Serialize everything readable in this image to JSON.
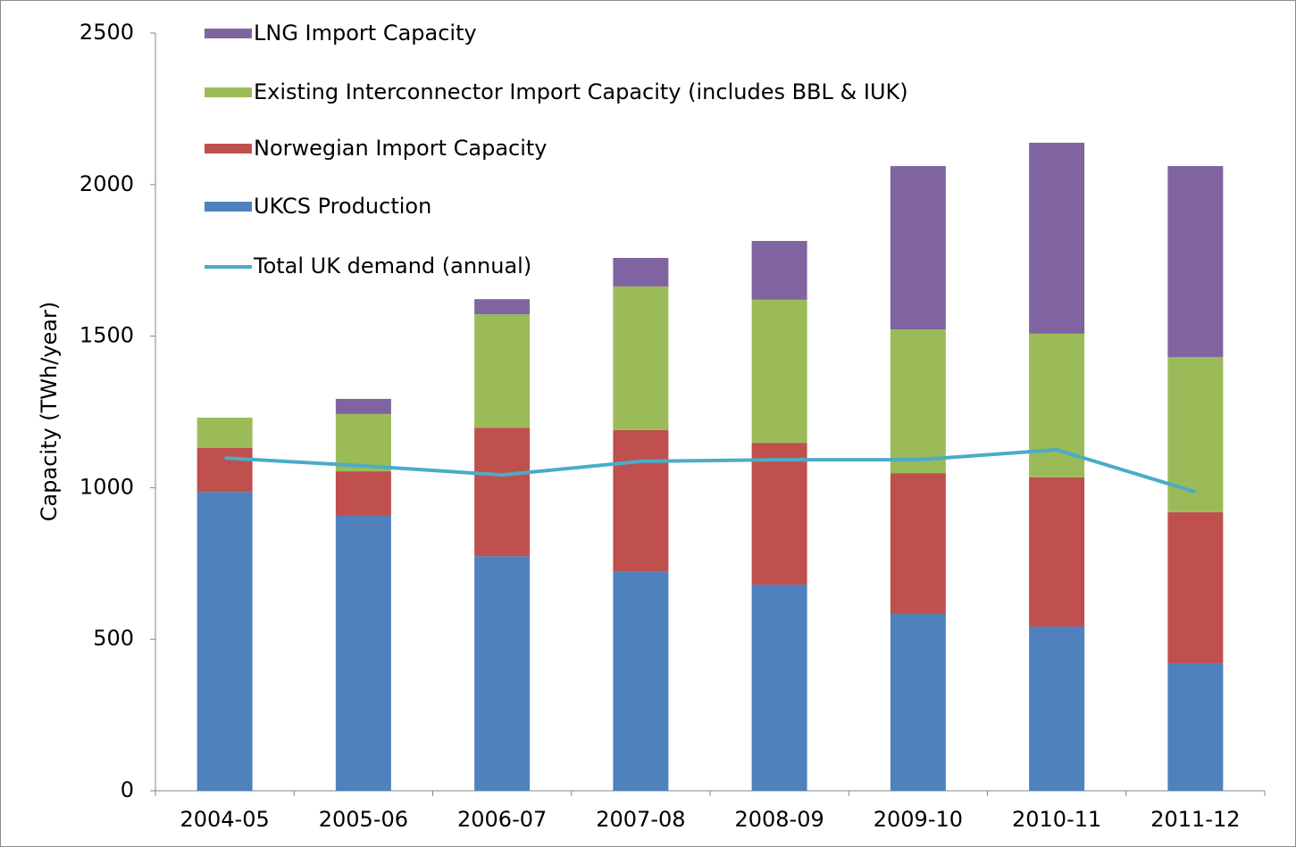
{
  "chart_data": {
    "type": "bar",
    "stacked": true,
    "y_label": "Capacity (TWh/year)",
    "categories": [
      "2004-05",
      "2005-06",
      "2006-07",
      "2007-08",
      "2008-09",
      "2009-10",
      "2010-11",
      "2011-12"
    ],
    "series": [
      {
        "name": "UKCS Production",
        "type": "bar",
        "color": "#4f81bd",
        "values": [
          986,
          907,
          774,
          724,
          680,
          583,
          542,
          421
        ]
      },
      {
        "name": "Norwegian Import Capacity",
        "type": "bar",
        "color": "#c0504d",
        "values": [
          145,
          147,
          424,
          466,
          468,
          465,
          492,
          498
        ]
      },
      {
        "name": "Existing Interconnector Import Capacity (includes BBL & IUK)",
        "type": "bar",
        "color": "#9bbb59",
        "values": [
          100,
          189,
          374,
          474,
          472,
          474,
          474,
          512
        ]
      },
      {
        "name": "LNG Import Capacity",
        "type": "bar",
        "color": "#8064a2",
        "values": [
          0,
          50,
          50,
          94,
          194,
          539,
          630,
          630
        ]
      },
      {
        "name": "Total UK demand (annual)",
        "type": "line",
        "color": "#4bacc6",
        "values": [
          1098,
          1072,
          1042,
          1087,
          1092,
          1092,
          1125,
          986
        ]
      }
    ],
    "ylim": [
      0,
      2500
    ],
    "yticks": [
      0,
      500,
      1000,
      1500,
      2000,
      2500
    ],
    "grid": false
  }
}
